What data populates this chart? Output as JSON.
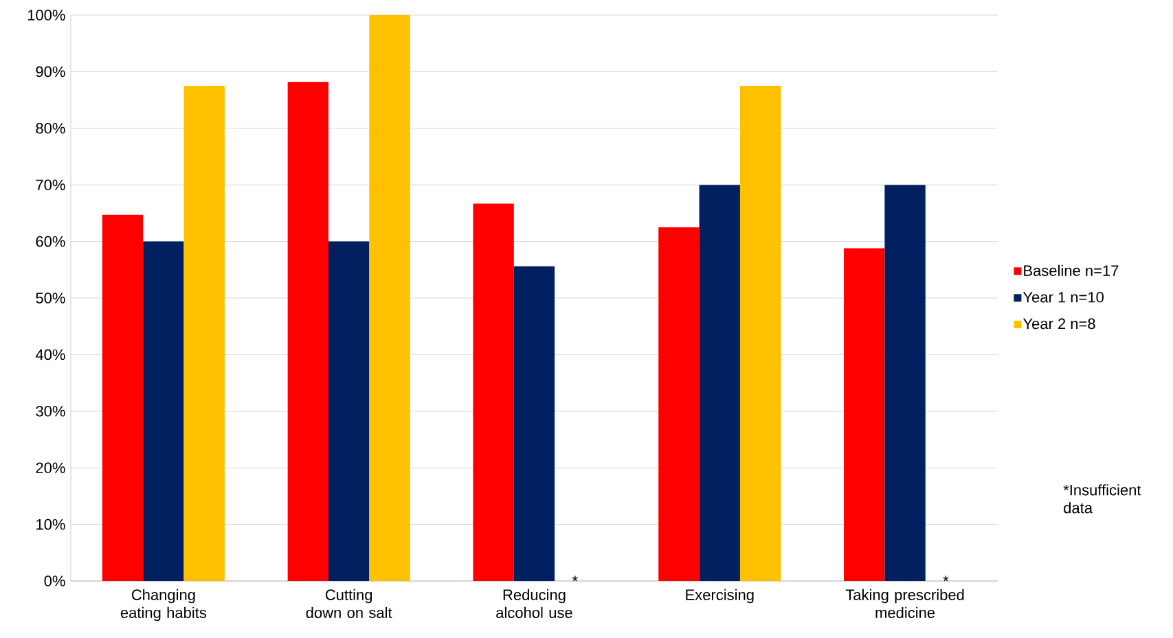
{
  "chart_data": {
    "type": "bar",
    "categories": [
      "Changing eating habits",
      "Cutting down on salt",
      "Reducing alcohol use",
      "Exercising",
      "Taking prescribed medicine"
    ],
    "series": [
      {
        "name": "Baseline n=17",
        "color": "#ff0000",
        "values": [
          64.7,
          88.2,
          66.7,
          62.5,
          58.8
        ]
      },
      {
        "name": "Year 1 n=10",
        "color": "#002060",
        "values": [
          60,
          60,
          55.6,
          70,
          70
        ]
      },
      {
        "name": "Year 2 n=8",
        "color": "#ffc000",
        "values": [
          87.5,
          100,
          null,
          87.5,
          null
        ]
      }
    ],
    "ylim": [
      0,
      100
    ],
    "yticks": [
      {
        "value": 0,
        "label": "0%"
      },
      {
        "value": 10,
        "label": "10%"
      },
      {
        "value": 20,
        "label": "20%"
      },
      {
        "value": 30,
        "label": "30%"
      },
      {
        "value": 40,
        "label": "40%"
      },
      {
        "value": 50,
        "label": "50%"
      },
      {
        "value": 60,
        "label": "60%"
      },
      {
        "value": 70,
        "label": "70%"
      },
      {
        "value": 80,
        "label": "80%"
      },
      {
        "value": 90,
        "label": "90%"
      },
      {
        "value": 100,
        "label": "100%"
      }
    ],
    "grid": "y",
    "legend": "right",
    "annotations": [
      "*",
      "*",
      "*Insufficient data"
    ]
  }
}
